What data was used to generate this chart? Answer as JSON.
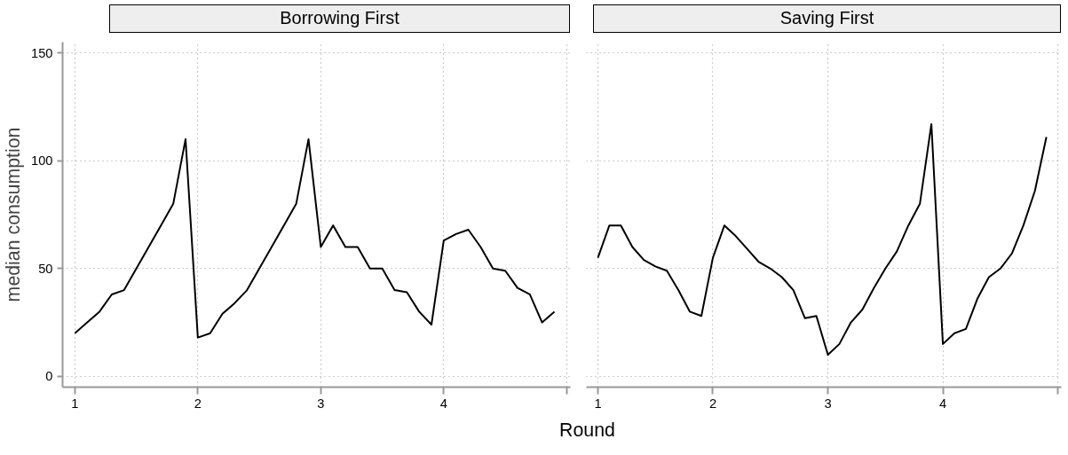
{
  "chart_data": [
    {
      "type": "line",
      "title": "Borrowing First",
      "ylabel": "median consumption",
      "xlabel": "Round",
      "x": [
        1.0,
        1.1,
        1.2,
        1.3,
        1.4,
        1.5,
        1.6,
        1.7,
        1.8,
        1.9,
        2.0,
        2.1,
        2.2,
        2.3,
        2.4,
        2.5,
        2.6,
        2.7,
        2.8,
        2.9,
        3.0,
        3.1,
        3.2,
        3.3,
        3.4,
        3.5,
        3.6,
        3.7,
        3.8,
        3.9,
        4.0,
        4.1,
        4.2,
        4.3,
        4.4,
        4.5,
        4.6,
        4.7,
        4.8,
        4.9
      ],
      "series": [
        {
          "color": "#000000",
          "values": [
            20,
            25,
            30,
            38,
            40,
            50,
            60,
            70,
            80,
            110,
            18,
            20,
            29,
            34,
            40,
            50,
            60,
            70,
            80,
            110,
            60,
            70,
            60,
            60,
            50,
            50,
            40,
            39,
            30,
            24,
            63,
            66,
            68,
            60,
            50,
            49,
            41,
            38,
            25,
            30
          ]
        }
      ],
      "xlim": [
        0.9,
        5.03
      ],
      "ylim": [
        -5,
        155
      ],
      "xticks": [
        1,
        2,
        3,
        4,
        {
          "value": 5,
          "label": null
        }
      ],
      "yticks": [
        0,
        50,
        100,
        150
      ],
      "grid": true,
      "marker": "none",
      "line_style": "solid"
    },
    {
      "type": "line",
      "title": "Saving First",
      "x": [
        1.0,
        1.1,
        1.2,
        1.3,
        1.4,
        1.5,
        1.6,
        1.7,
        1.8,
        1.9,
        2.0,
        2.1,
        2.2,
        2.3,
        2.4,
        2.5,
        2.6,
        2.7,
        2.8,
        2.9,
        3.0,
        3.1,
        3.2,
        3.3,
        3.4,
        3.5,
        3.6,
        3.7,
        3.8,
        3.9,
        4.0,
        4.1,
        4.2,
        4.3,
        4.4,
        4.5,
        4.6,
        4.7,
        4.8,
        4.9
      ],
      "series": [
        {
          "color": "#000000",
          "values": [
            55,
            70,
            70,
            60,
            54,
            51,
            49,
            40,
            30,
            28,
            55,
            70,
            65,
            59,
            53,
            50,
            46,
            40,
            27,
            28,
            10,
            15,
            25,
            31,
            41,
            50,
            58,
            70,
            80,
            117,
            15,
            20,
            22,
            36,
            46,
            50,
            57,
            70,
            86,
            111
          ]
        }
      ],
      "xlim": [
        0.9,
        5.03
      ],
      "ylim": [
        -5,
        155
      ],
      "xticks": [
        1,
        2,
        3,
        4,
        {
          "value": 5,
          "label": null
        }
      ],
      "yticks": [
        0,
        50,
        100,
        150
      ],
      "tick_labels": "x",
      "grid": true,
      "marker": "none",
      "line_style": "solid"
    }
  ]
}
